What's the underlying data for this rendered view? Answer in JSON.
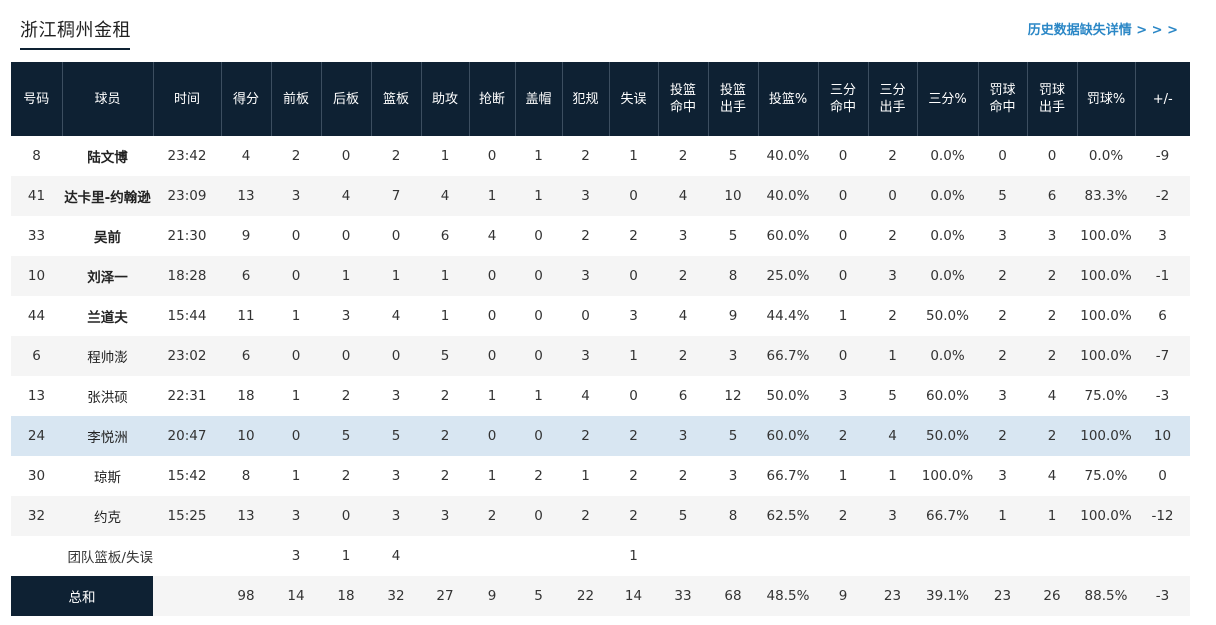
{
  "header": {
    "team_name": "浙江稠州金租",
    "history_link": "历史数据缺失详情 > > >"
  },
  "columns": [
    "号码",
    "球员",
    "时间",
    "得分",
    "前板",
    "后板",
    "篮板",
    "助攻",
    "抢断",
    "盖帽",
    "犯规",
    "失误",
    "投篮\n命中",
    "投篮\n出手",
    "投篮%",
    "三分\n命中",
    "三分\n出手",
    "三分%",
    "罚球\n命中",
    "罚球\n出手",
    "罚球%",
    "+/-"
  ],
  "players": [
    {
      "number": "8",
      "name": "陆文博",
      "starter": true,
      "stats": [
        "23:42",
        "4",
        "2",
        "0",
        "2",
        "1",
        "0",
        "1",
        "2",
        "1",
        "2",
        "5",
        "40.0%",
        "0",
        "2",
        "0.0%",
        "0",
        "0",
        "0.0%",
        "-9"
      ]
    },
    {
      "number": "41",
      "name": "达卡里-约翰逊",
      "starter": true,
      "stats": [
        "23:09",
        "13",
        "3",
        "4",
        "7",
        "4",
        "1",
        "1",
        "3",
        "0",
        "4",
        "10",
        "40.0%",
        "0",
        "0",
        "0.0%",
        "5",
        "6",
        "83.3%",
        "-2"
      ]
    },
    {
      "number": "33",
      "name": "吴前",
      "starter": true,
      "stats": [
        "21:30",
        "9",
        "0",
        "0",
        "0",
        "6",
        "4",
        "0",
        "2",
        "2",
        "3",
        "5",
        "60.0%",
        "0",
        "2",
        "0.0%",
        "3",
        "3",
        "100.0%",
        "3"
      ]
    },
    {
      "number": "10",
      "name": "刘泽一",
      "starter": true,
      "stats": [
        "18:28",
        "6",
        "0",
        "1",
        "1",
        "1",
        "0",
        "0",
        "3",
        "0",
        "2",
        "8",
        "25.0%",
        "0",
        "3",
        "0.0%",
        "2",
        "2",
        "100.0%",
        "-1"
      ]
    },
    {
      "number": "44",
      "name": "兰道夫",
      "starter": true,
      "stats": [
        "15:44",
        "11",
        "1",
        "3",
        "4",
        "1",
        "0",
        "0",
        "0",
        "3",
        "4",
        "9",
        "44.4%",
        "1",
        "2",
        "50.0%",
        "2",
        "2",
        "100.0%",
        "6"
      ]
    },
    {
      "number": "6",
      "name": "程帅澎",
      "starter": false,
      "stats": [
        "23:02",
        "6",
        "0",
        "0",
        "0",
        "5",
        "0",
        "0",
        "3",
        "1",
        "2",
        "3",
        "66.7%",
        "0",
        "1",
        "0.0%",
        "2",
        "2",
        "100.0%",
        "-7"
      ]
    },
    {
      "number": "13",
      "name": "张洪硕",
      "starter": false,
      "stats": [
        "22:31",
        "18",
        "1",
        "2",
        "3",
        "2",
        "1",
        "1",
        "4",
        "0",
        "6",
        "12",
        "50.0%",
        "3",
        "5",
        "60.0%",
        "3",
        "4",
        "75.0%",
        "-3"
      ]
    },
    {
      "number": "24",
      "name": "李悦洲",
      "starter": false,
      "highlight": true,
      "stats": [
        "20:47",
        "10",
        "0",
        "5",
        "5",
        "2",
        "0",
        "0",
        "2",
        "2",
        "3",
        "5",
        "60.0%",
        "2",
        "4",
        "50.0%",
        "2",
        "2",
        "100.0%",
        "10"
      ]
    },
    {
      "number": "30",
      "name": "琼斯",
      "starter": false,
      "stats": [
        "15:42",
        "8",
        "1",
        "2",
        "3",
        "2",
        "1",
        "2",
        "1",
        "2",
        "2",
        "3",
        "66.7%",
        "1",
        "1",
        "100.0%",
        "3",
        "4",
        "75.0%",
        "0"
      ]
    },
    {
      "number": "32",
      "name": "约克",
      "starter": false,
      "stats": [
        "15:25",
        "13",
        "3",
        "0",
        "3",
        "3",
        "2",
        "0",
        "2",
        "2",
        "5",
        "8",
        "62.5%",
        "2",
        "3",
        "66.7%",
        "1",
        "1",
        "100.0%",
        "-12"
      ]
    }
  ],
  "team_row": {
    "label": "团队篮板/失误",
    "stats": [
      "",
      "",
      "3",
      "1",
      "4",
      "",
      "",
      "",
      "",
      "1",
      "",
      "",
      "",
      "",
      "",
      "",
      "",
      "",
      "",
      ""
    ]
  },
  "totals_row": {
    "label": "总和",
    "stats": [
      "",
      "98",
      "14",
      "18",
      "32",
      "27",
      "9",
      "5",
      "22",
      "14",
      "33",
      "68",
      "48.5%",
      "9",
      "23",
      "39.1%",
      "23",
      "26",
      "88.5%",
      "-3"
    ]
  }
}
